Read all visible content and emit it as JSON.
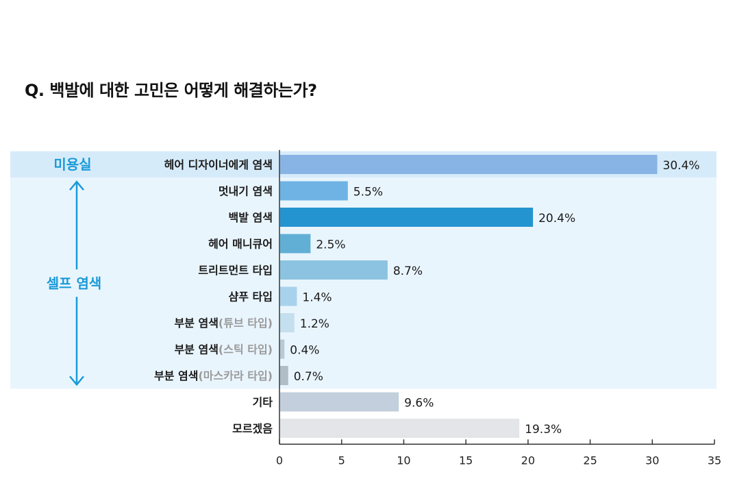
{
  "title": "Q. 백발에 대한 고민은 어떻게 해결하는가?",
  "chart_data": {
    "type": "bar",
    "orientation": "horizontal",
    "xlim": [
      0,
      35
    ],
    "xticks": [
      0,
      5,
      10,
      15,
      20,
      25,
      30,
      35
    ],
    "value_suffix": "%",
    "groups": [
      {
        "label": "미용실",
        "categories": [
          "헤어 디자이너에게 염색"
        ]
      },
      {
        "label": "셀프 염색",
        "categories": [
          "멋내기 염색",
          "백발 염색",
          "헤어 매니큐어",
          "트리트먼트 타입",
          "샴푸 타입",
          "부분 염색(튜브 타입)",
          "부분 염색(스틱 타입)",
          "부분 염색(마스카라 타입)"
        ]
      }
    ],
    "bars": [
      {
        "label": "헤어 디자이너에게 염색",
        "main": "헤어 디자이너에게 염색",
        "sub": "",
        "value": 30.4,
        "value_label": "30.4%",
        "color": "#87b4e4"
      },
      {
        "label": "멋내기 염색",
        "main": "멋내기 염색",
        "sub": "",
        "value": 5.5,
        "value_label": "5.5%",
        "color": "#6eb3e4"
      },
      {
        "label": "백발 염색",
        "main": "백발 염색",
        "sub": "",
        "value": 20.4,
        "value_label": "20.4%",
        "color": "#2494d0"
      },
      {
        "label": "헤어 매니큐어",
        "main": "헤어 매니큐어",
        "sub": "",
        "value": 2.5,
        "value_label": "2.5%",
        "color": "#62afd6"
      },
      {
        "label": "트리트먼트 타입",
        "main": "트리트먼트 타입",
        "sub": "",
        "value": 8.7,
        "value_label": "8.7%",
        "color": "#8cc3e0"
      },
      {
        "label": "샴푸 타입",
        "main": "샴푸 타입",
        "sub": "",
        "value": 1.4,
        "value_label": "1.4%",
        "color": "#a8d2ec"
      },
      {
        "label": "부분 염색(튜브 타입)",
        "main": "부분 염색",
        "sub": "(튜브 타입)",
        "value": 1.2,
        "value_label": "1.2%",
        "color": "#c4dfee"
      },
      {
        "label": "부분 염색(스틱 타입)",
        "main": "부분 염색",
        "sub": "(스틱 타입)",
        "value": 0.4,
        "value_label": "0.4%",
        "color": "#b8cad6"
      },
      {
        "label": "부분 염색(마스카라 타입)",
        "main": "부분 염색",
        "sub": "(마스카라 타입)",
        "value": 0.7,
        "value_label": "0.7%",
        "color": "#b0bcc6"
      },
      {
        "label": "기타",
        "main": "기타",
        "sub": "",
        "value": 9.6,
        "value_label": "9.6%",
        "color": "#c3cfdc"
      },
      {
        "label": "모르겠음",
        "main": "모르겠음",
        "sub": "",
        "value": 19.3,
        "value_label": "19.3%",
        "color": "#e3e5e8"
      }
    ],
    "colors": {
      "band_salon": "#d6ebfa",
      "band_self": "#e9f5fd",
      "group_text": "#1a9ad8",
      "arrow": "#1a9ad8",
      "sub_text": "#9a9a9a",
      "axis": "#333333"
    }
  }
}
